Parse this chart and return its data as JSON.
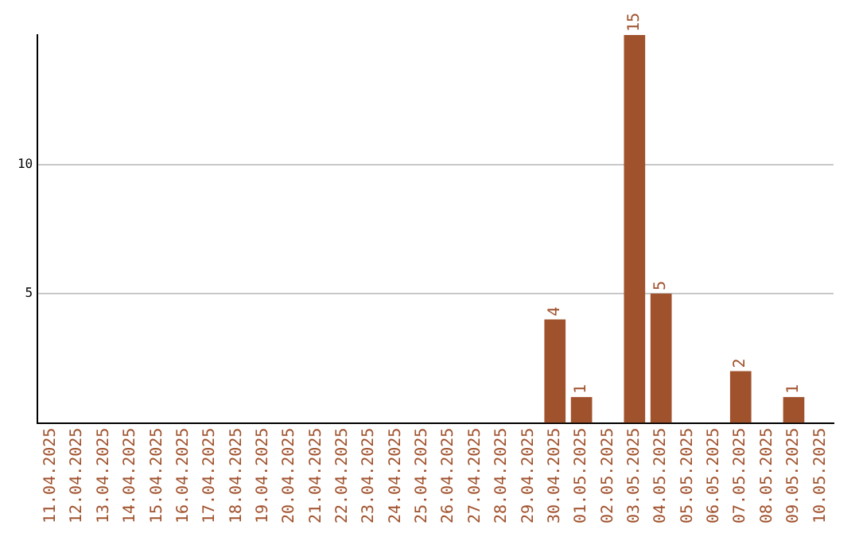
{
  "chart_data": {
    "type": "bar",
    "categories": [
      "11.04.2025",
      "12.04.2025",
      "13.04.2025",
      "14.04.2025",
      "15.04.2025",
      "16.04.2025",
      "17.04.2025",
      "18.04.2025",
      "19.04.2025",
      "20.04.2025",
      "21.04.2025",
      "22.04.2025",
      "23.04.2025",
      "24.04.2025",
      "25.04.2025",
      "26.04.2025",
      "27.04.2025",
      "28.04.2025",
      "29.04.2025",
      "30.04.2025",
      "01.05.2025",
      "02.05.2025",
      "03.05.2025",
      "04.05.2025",
      "05.05.2025",
      "06.05.2025",
      "07.05.2025",
      "08.05.2025",
      "09.05.2025",
      "10.05.2025"
    ],
    "values": [
      0,
      0,
      0,
      0,
      0,
      0,
      0,
      0,
      0,
      0,
      0,
      0,
      0,
      0,
      0,
      0,
      0,
      0,
      0,
      4,
      1,
      0,
      15,
      5,
      0,
      0,
      2,
      0,
      1,
      0
    ],
    "value_labels": [
      null,
      null,
      null,
      null,
      null,
      null,
      null,
      null,
      null,
      null,
      null,
      null,
      null,
      null,
      null,
      null,
      null,
      null,
      null,
      "4",
      "1",
      null,
      "15",
      "5",
      null,
      null,
      "2",
      null,
      "1",
      null
    ],
    "color": "#a0522d",
    "ylim": [
      0,
      15
    ],
    "yticks": [
      5,
      10
    ],
    "grid": "y",
    "legend": false
  }
}
